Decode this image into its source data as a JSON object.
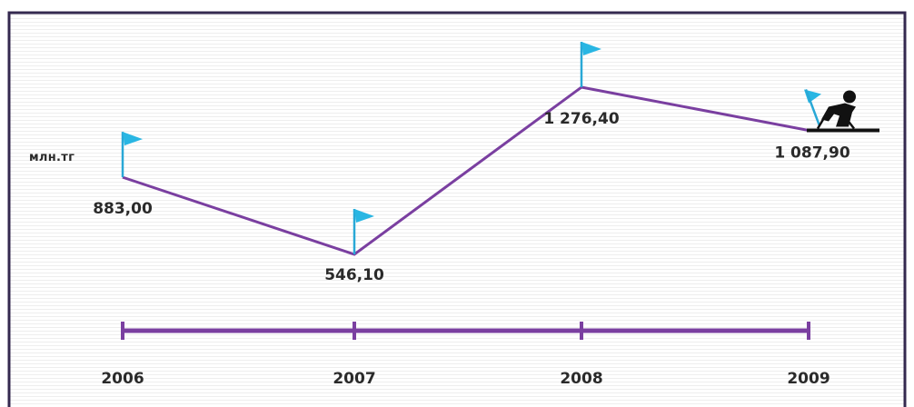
{
  "chart_data": {
    "type": "line",
    "unit_label": "млн.тг",
    "categories": [
      "2006",
      "2007",
      "2008",
      "2009"
    ],
    "series": [
      {
        "values": [
          883.0,
          546.1,
          1276.4,
          1087.9
        ]
      }
    ],
    "data_labels": [
      "883,00",
      "546,10",
      "1 276,40",
      "1 087,90"
    ],
    "ylim": [
      400,
      1400
    ],
    "grid": false,
    "line_color": "#7a3fa0",
    "flag_color": "#29b6e3",
    "marker_icon": "flag-icon",
    "end_icon": "skier-icon"
  }
}
